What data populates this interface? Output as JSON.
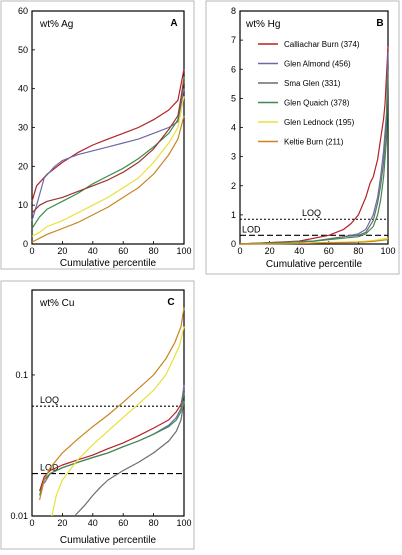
{
  "chart_data": [
    {
      "type": "line",
      "panel_letter": "A",
      "ylabel": "wt% Ag",
      "xlabel": "Cumulative percentile",
      "xlim": [
        0,
        100
      ],
      "ylim": [
        0,
        60
      ],
      "xticks": [
        0,
        20,
        40,
        60,
        80,
        100
      ],
      "yticks": [
        0,
        10,
        20,
        30,
        40,
        50,
        60
      ],
      "tick_labels_x": [
        "0",
        "20",
        "40",
        "60",
        "80",
        "100"
      ],
      "tick_labels_y": [
        "0",
        "10",
        "20",
        "30",
        "40",
        "50",
        "60"
      ],
      "series": [
        {
          "color": "#b52025",
          "x": [
            0,
            3,
            10,
            20,
            30,
            40,
            50,
            60,
            70,
            80,
            90,
            96,
            100
          ],
          "y": [
            11,
            15,
            18,
            21,
            23.5,
            25.5,
            27,
            28.5,
            30,
            32,
            34.5,
            37,
            45
          ]
        },
        {
          "color": "#6b6aa8",
          "x": [
            0,
            3,
            8,
            15,
            20,
            30,
            40,
            50,
            60,
            70,
            80,
            90,
            96,
            100
          ],
          "y": [
            6,
            10,
            17,
            20,
            21.5,
            23,
            24,
            25,
            26,
            27,
            28.5,
            30,
            31.5,
            40
          ]
        },
        {
          "color": "#3d8a4e",
          "x": [
            0,
            5,
            10,
            20,
            30,
            40,
            50,
            60,
            70,
            80,
            90,
            96,
            100
          ],
          "y": [
            4,
            7,
            9,
            11,
            13,
            15.5,
            17.5,
            19.5,
            22,
            25,
            28.5,
            32,
            43
          ]
        },
        {
          "color": "#9b3430",
          "x": [
            0,
            5,
            10,
            20,
            30,
            40,
            50,
            60,
            70,
            80,
            90,
            96,
            100
          ],
          "y": [
            8,
            10,
            11,
            12,
            13.5,
            15,
            16.5,
            18.5,
            21,
            24.5,
            29.5,
            33,
            42
          ]
        },
        {
          "color": "#e8e13a",
          "x": [
            0,
            5,
            10,
            20,
            30,
            40,
            50,
            60,
            70,
            80,
            90,
            96,
            100
          ],
          "y": [
            2,
            3,
            4.5,
            6,
            8,
            10,
            12,
            14.5,
            17,
            21,
            26,
            30,
            38
          ]
        },
        {
          "color": "#c9851f",
          "x": [
            0,
            5,
            10,
            20,
            30,
            40,
            50,
            60,
            70,
            80,
            90,
            96,
            100
          ],
          "y": [
            0.5,
            1.5,
            2.5,
            4,
            5.5,
            7.5,
            9.5,
            12,
            14.5,
            18,
            23,
            27,
            33
          ]
        }
      ]
    },
    {
      "type": "line",
      "panel_letter": "B",
      "ylabel": "wt% Hg",
      "xlabel": "Cumulative percentile",
      "xlim": [
        0,
        100
      ],
      "ylim": [
        0,
        8
      ],
      "xticks": [
        0,
        20,
        40,
        60,
        80,
        100
      ],
      "yticks": [
        0,
        1,
        2,
        3,
        4,
        5,
        6,
        7,
        8
      ],
      "tick_labels_x": [
        "0",
        "20",
        "40",
        "60",
        "80",
        "100"
      ],
      "tick_labels_y": [
        "0",
        "1",
        "2",
        "3",
        "4",
        "5",
        "6",
        "7",
        "8"
      ],
      "reference_lines": [
        {
          "label": "LOQ",
          "y": 0.85,
          "style": "dotted"
        },
        {
          "label": "LOD",
          "y": 0.3,
          "style": "dashed"
        }
      ],
      "series": [
        {
          "name": "Calliachar Burn (374)",
          "color": "#b52025",
          "x": [
            0,
            40,
            60,
            70,
            75,
            80,
            85,
            88,
            90,
            93,
            95,
            97,
            98,
            100
          ],
          "y": [
            0,
            0.1,
            0.3,
            0.5,
            0.7,
            1.0,
            1.6,
            2.1,
            2.3,
            2.9,
            3.6,
            4.3,
            4.8,
            6.8
          ]
        },
        {
          "name": "Glen Almond  (456)",
          "color": "#6b6aa8",
          "x": [
            0,
            50,
            70,
            80,
            85,
            90,
            93,
            95,
            97,
            99,
            100
          ],
          "y": [
            0,
            0.1,
            0.25,
            0.35,
            0.5,
            1.0,
            1.6,
            2.3,
            3.2,
            4.5,
            6.6
          ]
        },
        {
          "name": "Sma Glen (331)",
          "color": "#6d6d6d",
          "x": [
            0,
            50,
            70,
            80,
            85,
            90,
            93,
            95,
            97,
            99,
            100
          ],
          "y": [
            0,
            0.1,
            0.25,
            0.3,
            0.4,
            0.8,
            1.4,
            2.0,
            2.8,
            4.2,
            6.0
          ]
        },
        {
          "name": "Glen Quaich (378)",
          "color": "#3d8a4e",
          "x": [
            0,
            50,
            70,
            80,
            85,
            90,
            93,
            95,
            97,
            99,
            100
          ],
          "y": [
            0,
            0.1,
            0.2,
            0.25,
            0.35,
            0.6,
            1.0,
            1.5,
            2.3,
            3.6,
            5.8
          ]
        },
        {
          "name": "Glen Lednock (195)",
          "color": "#e8e13a",
          "x": [
            0,
            40,
            60,
            80,
            90,
            100
          ],
          "y": [
            0,
            0.02,
            0.05,
            0.08,
            0.12,
            0.2
          ]
        },
        {
          "name": "Keltie Burn (211)",
          "color": "#c9851f",
          "x": [
            0,
            40,
            60,
            80,
            90,
            100
          ],
          "y": [
            0,
            0.02,
            0.04,
            0.06,
            0.09,
            0.15
          ]
        }
      ]
    },
    {
      "type": "line",
      "panel_letter": "C",
      "ylabel": "wt% Cu",
      "xlabel": "Cumulative percentile",
      "xlim": [
        0,
        100
      ],
      "ylim": [
        0.01,
        0.4
      ],
      "y_scale": "log",
      "xticks": [
        0,
        20,
        40,
        60,
        80,
        100
      ],
      "yticks": [
        0.01,
        0.1
      ],
      "tick_labels_x": [
        "0",
        "20",
        "40",
        "60",
        "80",
        "100"
      ],
      "tick_labels_y": [
        "0.01",
        "0.1"
      ],
      "reference_lines": [
        {
          "label": "LOQ",
          "y": 0.06,
          "style": "dotted"
        },
        {
          "label": "LOD",
          "y": 0.02,
          "style": "dashed"
        }
      ],
      "series": [
        {
          "color": "#b52025",
          "x": [
            5,
            8,
            12,
            20,
            30,
            40,
            50,
            60,
            70,
            80,
            90,
            95,
            98,
            100
          ],
          "y": [
            0.015,
            0.019,
            0.021,
            0.023,
            0.025,
            0.027,
            0.03,
            0.033,
            0.037,
            0.042,
            0.048,
            0.055,
            0.062,
            0.08
          ]
        },
        {
          "color": "#6b6aa8",
          "x": [
            8,
            12,
            20,
            30,
            40,
            50,
            60,
            70,
            80,
            90,
            95,
            98,
            100
          ],
          "y": [
            0.017,
            0.02,
            0.022,
            0.024,
            0.026,
            0.028,
            0.031,
            0.034,
            0.038,
            0.044,
            0.05,
            0.058,
            0.085
          ]
        },
        {
          "color": "#3d8a4e",
          "x": [
            5,
            8,
            12,
            20,
            30,
            40,
            50,
            60,
            70,
            80,
            90,
            95,
            98,
            100
          ],
          "y": [
            0.014,
            0.018,
            0.02,
            0.022,
            0.024,
            0.026,
            0.028,
            0.031,
            0.034,
            0.038,
            0.043,
            0.048,
            0.055,
            0.075
          ]
        },
        {
          "color": "#6d6d6d",
          "x": [
            28,
            35,
            40,
            45,
            50,
            60,
            70,
            80,
            90,
            95,
            98,
            100
          ],
          "y": [
            0.01,
            0.012,
            0.014,
            0.016,
            0.018,
            0.021,
            0.024,
            0.028,
            0.034,
            0.04,
            0.048,
            0.065
          ]
        },
        {
          "color": "#e8e13a",
          "x": [
            13,
            16,
            20,
            30,
            40,
            50,
            60,
            70,
            80,
            88,
            93,
            97,
            100
          ],
          "y": [
            0.01,
            0.014,
            0.018,
            0.025,
            0.032,
            0.04,
            0.05,
            0.062,
            0.078,
            0.1,
            0.13,
            0.16,
            0.22
          ]
        },
        {
          "color": "#c9851f",
          "x": [
            5,
            8,
            12,
            20,
            30,
            40,
            50,
            60,
            70,
            80,
            88,
            94,
            98,
            100
          ],
          "y": [
            0.013,
            0.018,
            0.022,
            0.028,
            0.035,
            0.043,
            0.052,
            0.064,
            0.08,
            0.1,
            0.13,
            0.17,
            0.22,
            0.3
          ]
        }
      ]
    }
  ]
}
